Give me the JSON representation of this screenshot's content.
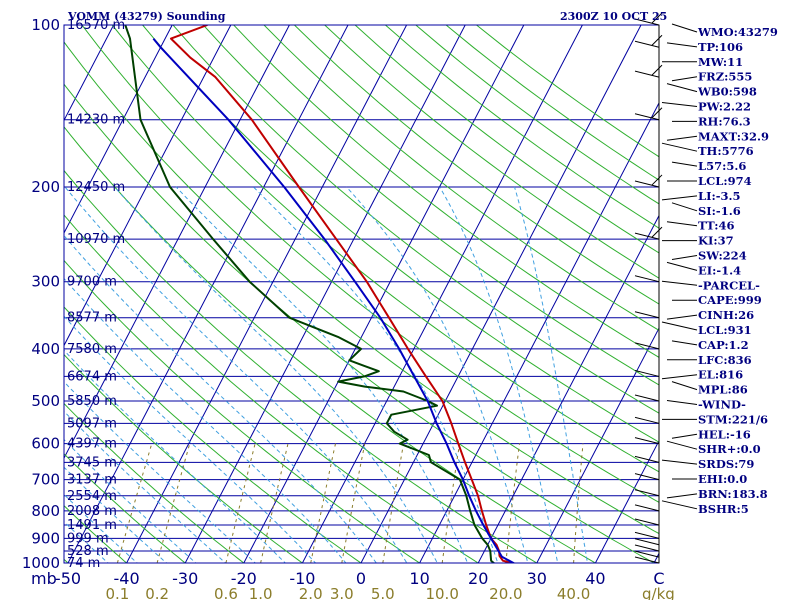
{
  "title": "VOMM (43279) Sounding",
  "datetime": "2300Z 10 OCT 25",
  "pressure_axis_unit": "mb",
  "mixing_ratio_unit": "g/kg",
  "index_lines": [
    "WMO:43279",
    "TP:106",
    "MW:11",
    "FRZ:555",
    "WB0:598",
    "PW:2.22",
    "RH:76.3",
    "MAXT:32.9",
    "TH:5776",
    "L57:5.6",
    "LCL:974",
    "LI:-3.5",
    "SI:-1.6",
    "TT:46",
    "KI:37",
    "SW:224",
    "EI:-1.4",
    "-PARCEL-",
    "CAPE:999",
    "CINH:26",
    "LCL:931",
    "CAP:1.2",
    "LFC:836",
    "EL:816",
    "MPL:86",
    "-WIND-",
    "STM:221/6",
    "HEL:-16",
    "SHR+:0.0",
    "SRDS:79",
    "EHI:0.0",
    "BRN:183.8",
    "BSHR:5"
  ],
  "chart_data": {
    "type": "line",
    "title": "VOMM (43279) Sounding",
    "subtitle": "2300Z 10 OCT 25",
    "xlabel": "",
    "ylabel": "mb",
    "y_scale": "log",
    "y_inverted": true,
    "ylim": [
      100,
      1000
    ],
    "xlim": [
      -50,
      50
    ],
    "temperature_ticks": [
      -50,
      -40,
      -30,
      -20,
      -10,
      0,
      10,
      20,
      30,
      40
    ],
    "pressure_ticks": [
      100,
      200,
      300,
      400,
      500,
      600,
      700,
      800,
      900,
      1000
    ],
    "mixing_ratio_ticks": [
      "0.1",
      "0.2",
      "0.6",
      "1.0",
      "2.0",
      "3.0",
      "5.0",
      "10.0",
      "20.0",
      "40.0"
    ],
    "height_labels": [
      {
        "p": 100,
        "label": "16570 m"
      },
      {
        "p": 150,
        "label": "14230 m"
      },
      {
        "p": 200,
        "label": "12450 m"
      },
      {
        "p": 250,
        "label": "10970 m"
      },
      {
        "p": 300,
        "label": "9700 m"
      },
      {
        "p": 350,
        "label": "8577 m"
      },
      {
        "p": 400,
        "label": "7580 m"
      },
      {
        "p": 450,
        "label": "6674 m"
      },
      {
        "p": 500,
        "label": "5850 m"
      },
      {
        "p": 550,
        "label": "5097 m"
      },
      {
        "p": 600,
        "label": "4397 m"
      },
      {
        "p": 650,
        "label": "3745 m"
      },
      {
        "p": 700,
        "label": "3137 m"
      },
      {
        "p": 750,
        "label": "2554 m"
      },
      {
        "p": 800,
        "label": "2008 m"
      },
      {
        "p": 850,
        "label": "1491 m"
      },
      {
        "p": 900,
        "label": "999 m"
      },
      {
        "p": 950,
        "label": "528 m"
      },
      {
        "p": 1000,
        "label": "74 m"
      }
    ],
    "series": [
      {
        "color": "#c00000",
        "points": [
          [
            1005,
            26.5
          ],
          [
            990,
            24
          ],
          [
            970,
            23
          ],
          [
            950,
            22.5
          ],
          [
            925,
            21.5
          ],
          [
            900,
            20
          ],
          [
            850,
            18
          ],
          [
            800,
            16
          ],
          [
            750,
            14
          ],
          [
            700,
            11.5
          ],
          [
            650,
            8.8
          ],
          [
            600,
            6
          ],
          [
            550,
            3
          ],
          [
            500,
            -0.5
          ],
          [
            450,
            -5.5
          ],
          [
            400,
            -11
          ],
          [
            350,
            -17
          ],
          [
            300,
            -24
          ],
          [
            250,
            -33
          ],
          [
            200,
            -44
          ],
          [
            150,
            -58
          ],
          [
            125,
            -68
          ],
          [
            115,
            -74
          ],
          [
            106,
            -79
          ],
          [
            100,
            -74
          ]
        ]
      },
      {
        "color": "#004000",
        "points": [
          [
            1005,
            23
          ],
          [
            990,
            22
          ],
          [
            950,
            21
          ],
          [
            925,
            20
          ],
          [
            900,
            18.5
          ],
          [
            850,
            16
          ],
          [
            800,
            14
          ],
          [
            750,
            12
          ],
          [
            700,
            9.5
          ],
          [
            650,
            3
          ],
          [
            630,
            2
          ],
          [
            600,
            -4
          ],
          [
            590,
            -3
          ],
          [
            570,
            -6
          ],
          [
            550,
            -8
          ],
          [
            530,
            -8
          ],
          [
            510,
            -1
          ],
          [
            500,
            -3
          ],
          [
            480,
            -8
          ],
          [
            470,
            -15
          ],
          [
            460,
            -20
          ],
          [
            450,
            -16
          ],
          [
            440,
            -14
          ],
          [
            430,
            -17
          ],
          [
            420,
            -20
          ],
          [
            400,
            -19
          ],
          [
            380,
            -24
          ],
          [
            350,
            -34
          ],
          [
            300,
            -44
          ],
          [
            250,
            -54
          ],
          [
            200,
            -66
          ],
          [
            150,
            -77
          ],
          [
            106,
            -86
          ],
          [
            100,
            -88
          ]
        ]
      },
      {
        "color": "#0000c0",
        "points": [
          [
            1005,
            26.5
          ],
          [
            974,
            23.5
          ],
          [
            931,
            21.5
          ],
          [
            900,
            20
          ],
          [
            850,
            17.5
          ],
          [
            800,
            15
          ],
          [
            750,
            12.5
          ],
          [
            700,
            10
          ],
          [
            650,
            7
          ],
          [
            600,
            4
          ],
          [
            550,
            0.5
          ],
          [
            500,
            -3
          ],
          [
            450,
            -7.5
          ],
          [
            400,
            -12.5
          ],
          [
            350,
            -18.5
          ],
          [
            300,
            -26
          ],
          [
            250,
            -35
          ],
          [
            200,
            -46.5
          ],
          [
            150,
            -62
          ],
          [
            110,
            -80
          ],
          [
            106,
            -82
          ]
        ]
      }
    ]
  }
}
